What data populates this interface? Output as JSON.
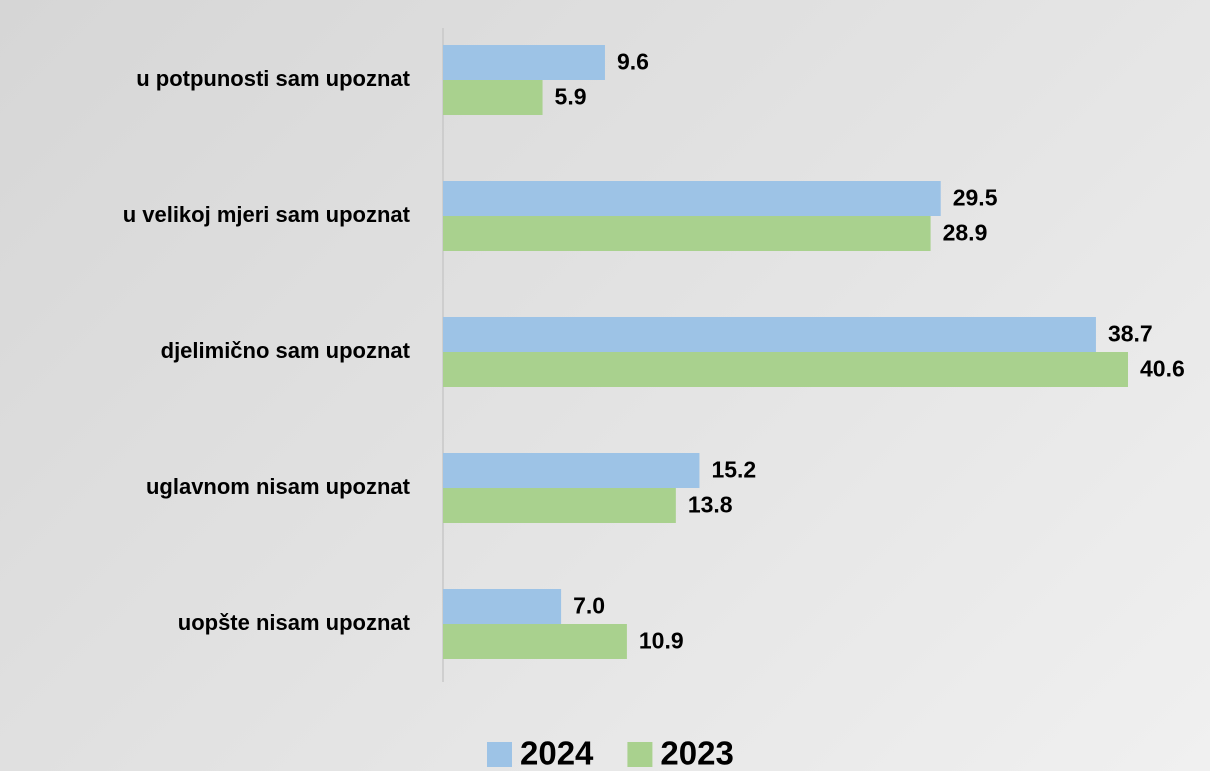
{
  "chart_data": {
    "type": "bar",
    "orientation": "horizontal",
    "categories": [
      "u potpunosti sam upoznat",
      "u velikoj mjeri sam upoznat",
      "djelimično sam upoznat",
      "uglavnom nisam upoznat",
      "uopšte nisam upoznat"
    ],
    "series": [
      {
        "name": "2024",
        "color": "#9dc3e6",
        "values": [
          9.6,
          29.5,
          38.7,
          15.2,
          7.0
        ],
        "value_labels": [
          "9.6",
          "29.5",
          "38.7",
          "15.2",
          "7.0"
        ]
      },
      {
        "name": "2023",
        "color": "#a9d18e",
        "values": [
          5.9,
          28.9,
          40.6,
          13.8,
          10.9
        ],
        "value_labels": [
          "5.9",
          "28.9",
          "40.6",
          "13.8",
          "10.9"
        ]
      }
    ],
    "legend": "bottom"
  }
}
